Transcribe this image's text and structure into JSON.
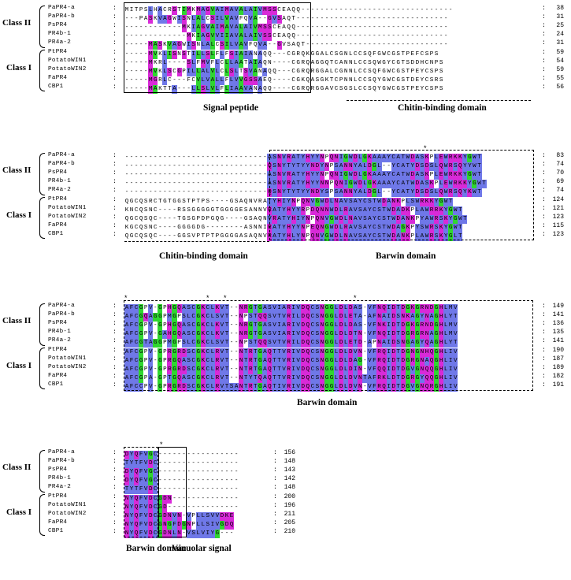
{
  "class_labels": {
    "class2": "Class II",
    "class1": "Class I"
  },
  "domain_labels": {
    "signal_peptide": "Signal peptide",
    "chitin_binding": "Chitin-binding domain",
    "barwin": "Barwin domain",
    "vacuolar": "Vacuolar signal"
  },
  "star": "*",
  "colon": ":",
  "colors": {
    "magenta": "#d82ad8",
    "green": "#2fd630",
    "blue": "#6f78e8"
  },
  "blocks": [
    {
      "rows": [
        {
          "name": "PaPR4-a",
          "seq": "MITPSLHACRSTIMKMAGVAIMAVALAIVMSSCEAQQ--------------------------------",
          "num": "38"
        },
        {
          "name": "PaPR4-b",
          "seq": "---PASKVAGWISNLALCSILVAVFQVA--GVSAQT--------------------------------",
          "num": "31"
        },
        {
          "name": "PsPR4",
          "seq": "------------MKIAGVAIMAVALAIVMSSCEAQQ--------------------------------",
          "num": "25"
        },
        {
          "name": "PR4b-1",
          "seq": "-------------MKIAGVVIIAVALAIVSSCEAQQ--------------------------------",
          "num": "24"
        },
        {
          "name": "PR4a-2",
          "seq": "-----MASKVAGWISNLALCSILVAVFQVA--GVSAQT------------------------------",
          "num": "31"
        },
        {
          "name": "PtPR4",
          "seq": "-----MVKLISNSTILLSLFLFSIAIANAQQ---CGRQKGGALCSGNLCCSQFGWCGSTPEFCSPS",
          "num": "59"
        },
        {
          "name": "PotatoWIN1",
          "seq": "-----MKRL----SLFMVFLCLLAATAIAQN----CGRQAGGQTCANNLCCSQWGYCGTSDDHCNPS",
          "num": "54"
        },
        {
          "name": "PotatoWIN2",
          "seq": "-----MVKLSCGPILLALVLCLSLTSVANAQQ---CGRQRGGALCGNNLCCSQFGWCGSTPEYCSPS",
          "num": "59"
        },
        {
          "name": "FaPR4",
          "seq": "-----MGRLC---FCVLVALLFLVVGSSAEQ----CGKQASGKTCPNNLCCSQYGWCGSTDEYCSRS",
          "num": "55"
        },
        {
          "name": "CBP1",
          "seq": "-----MAKTTA---LLSLVLFLIAAVANAQQ----CGRQRGGAVCSGSLCCSQYGWCGSTPEYCSPS",
          "num": "56"
        }
      ]
    },
    {
      "rows": [
        {
          "name": "PaPR4-a",
          "seq": "------------------------------ASNVRATYHYYNPQNIGWDLGKAAAYCATWDASKPLEWRKKYGWT",
          "num": "83"
        },
        {
          "name": "PaPR4-b",
          "seq": "------------------------------QSNYTYTYYNDYNPSANNYALDGL--YCATYDSDSLQWRSQYYWT",
          "num": "74"
        },
        {
          "name": "PsPR4",
          "seq": "------------------------------ASNVRATYHYYNPQNIGWDLGKAAAYCATWDASKPLEWRKKYGWT",
          "num": "70"
        },
        {
          "name": "PR4b-1",
          "seq": "------------------------------ASNVRATYHYYNNPQNIGWDLGKAAAYCATWDASKPLEWRKKYGWT",
          "num": "69"
        },
        {
          "name": "PR4a-2",
          "seq": "------------------------------QSNYTYTYYNDYSPSANNYALDGL--YCATYDSDSLQWRSQYKWT",
          "num": "74"
        },
        {
          "name": "PtPR4",
          "seq": "QGCQSRCTGTGGSTPTPS----GSAQNVRATYHIYNPQNVGWDLNAVSAYCSTWDANKPLSWRKKYGWT",
          "num": "124"
        },
        {
          "name": "PotatoWIN1",
          "seq": "KNCQSNC----RSSGGGGGTGGGGESANNVRATYHYYRPDQNNWDLRAVSAYCSTWDADKPLAWRRKYGWT",
          "num": "121"
        },
        {
          "name": "PotatoWIN2",
          "seq": "QGCQSQC----TGSGPDPGQG----GSAQNVRATYHIYNPQNVGWDLNAVSAYCSTWDANKPYAWRSKYGWT",
          "num": "123"
        },
        {
          "name": "FaPR4",
          "seq": "KGCQSNC----GGGGDG--------ASNNIRATYHYYNPEQNGWDLRAVSAYCSTWDAGKPYSWRSKYGWT",
          "num": "115"
        },
        {
          "name": "CBP1",
          "seq": "QGCQSQC----GGSVPTPTPGGGGASAQNVRATYHLYNPQNVGWDLNAVSAYCSTWDANKPLAWRSKYGLT",
          "num": "123"
        }
      ]
    },
    {
      "rows": [
        {
          "name": "PaPR4-a",
          "seq": "AFCGPV-GPHGQASCGKCLKVT--NRGTGASVIARIVDQCSNGGLDLDAS-VFNQIDTDGKGRNDGHLMV",
          "num": "149"
        },
        {
          "name": "PaPR4-b",
          "seq": "AFCGQAGGPMGPSLCGKCLSVT--NPSTQQSVTVRILDQCSNGGLDLETA-AFNAIDSNKAGYNAGHLYT",
          "num": "141"
        },
        {
          "name": "PsPR4",
          "seq": "AFCGPV-GPHGQASCGKCLKVT--NRGTGASVIARIVDQCSNGGLDLDAS-VFNKIDTDGKGRNDGHLMV",
          "num": "136"
        },
        {
          "name": "PR4b-1",
          "seq": "AFCGPV-GAHGQASCGKCLKVT--NRGTGASVIARIVDQCSNGGLDLDTN-VFNQIDTDGRGRNAGHLMV",
          "num": "135"
        },
        {
          "name": "PR4a-2",
          "seq": "AFCGTAGGPMGPSLCGKCLSVT--NPSTQQSVTVRILDQCSNGGLDLETD-APNAIDSNGAGYQAGHLYT",
          "num": "141"
        },
        {
          "name": "PtPR4",
          "seq": "AFCGPV-GPRGRDSCGKCLRVT--NTRTGAQTTVRIVDQCSNGGLDLDVN-VFRQIDTDGNGNHQGHLIV",
          "num": "190"
        },
        {
          "name": "PotatoWIN1",
          "seq": "AFCGPV-GPRGQASCGKCLRVT--NTRTGAQTTVRIVDQCSNGGLDLDAG-VFRQIDTDGRGNAQGHLIV",
          "num": "187"
        },
        {
          "name": "PotatoWIN2",
          "seq": "AFCGPV-GPRGRDSCGKCLRVT--NTRTGAQTTVRIVDQCSNGGLDLDIN-VFQQIDTDGVGNQQGHLIV",
          "num": "189"
        },
        {
          "name": "FaPR4",
          "seq": "AFCGPA-GPTGQASCGKCLRVT--NTYTQAQTTVRIVDQCSNGGLDLDVNTAFRKLDTDGRGYQQGHLIV",
          "num": "182"
        },
        {
          "name": "CBP1",
          "seq": "AFCCPV-GPRGRDSCGKCLRVTSANTRTGAQTIVRIVDQCSNGGLDLDVN-VFRQIDTDGVGNQRGHLIV",
          "num": "191"
        }
      ]
    },
    {
      "rows": [
        {
          "name": "PaPR4-a",
          "seq": "DYQFVGC-----------------",
          "num": "156"
        },
        {
          "name": "PaPR4-b",
          "seq": "TYTFVDC-----------------",
          "num": "148"
        },
        {
          "name": "PsPR4",
          "seq": "DYQFVGC-----------------",
          "num": "143"
        },
        {
          "name": "PR4b-1",
          "seq": "DYQFVGC-----------------",
          "num": "142"
        },
        {
          "name": "PR4a-2",
          "seq": "TYTFVDC-----------------",
          "num": "148"
        },
        {
          "name": "PtPR4",
          "seq": "NYQFVDCGDN--------------",
          "num": "200"
        },
        {
          "name": "PotatoWIN1",
          "seq": "NYQFVDCGD---------------",
          "num": "196"
        },
        {
          "name": "PotatoWIN2",
          "seq": "NYQFVDCGDNVN-VPLLSVVDKE",
          "num": "211"
        },
        {
          "name": "FaPR4",
          "seq": "NYQFVDCGNGFDGNPLLSIVGDQ",
          "num": "205"
        },
        {
          "name": "CBP1",
          "seq": "NYQFVDCGDNLN-VSLVIYG---",
          "num": "210"
        }
      ]
    }
  ]
}
